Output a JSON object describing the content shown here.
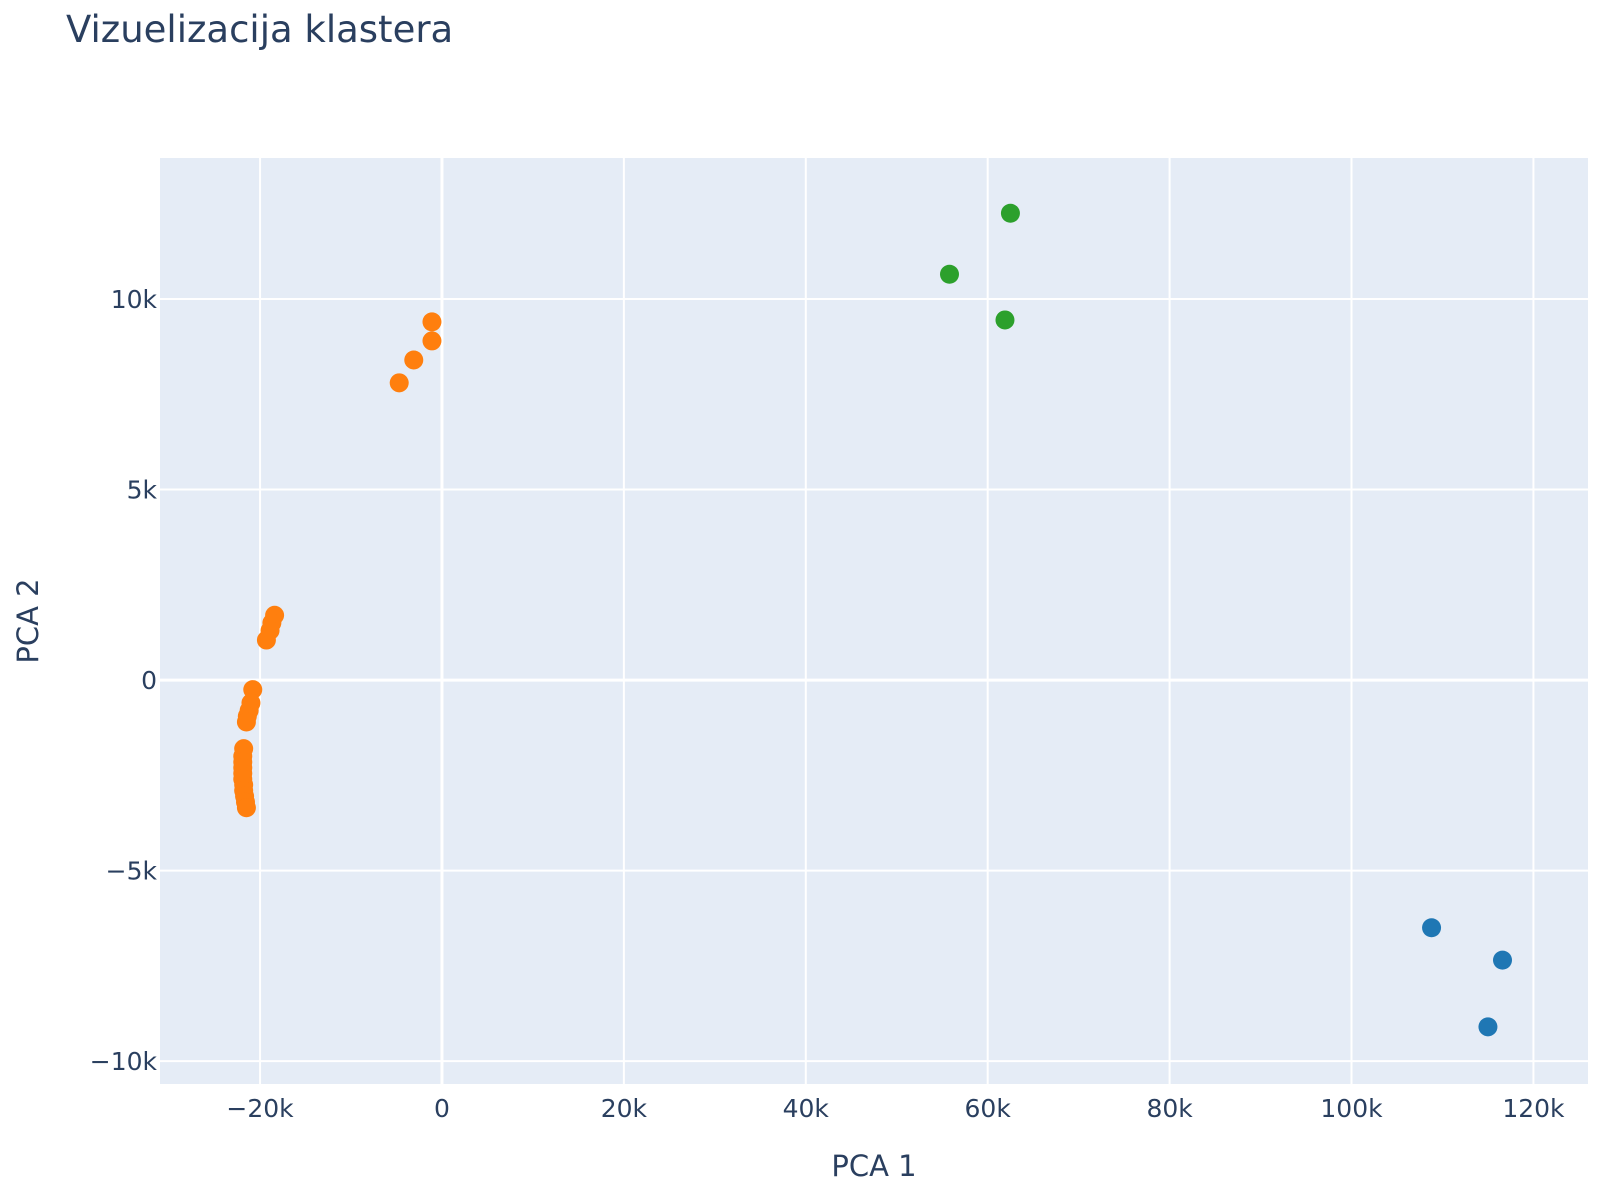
{
  "chart_data": {
    "type": "scatter",
    "title": "Vizuelizacija klastera",
    "xlabel": "PCA 1",
    "ylabel": "PCA 2",
    "xlim": [
      -31000,
      126000
    ],
    "ylim": [
      -10600,
      13700
    ],
    "x_ticks": [
      {
        "value": -20000,
        "label": "−20k"
      },
      {
        "value": 0,
        "label": "0"
      },
      {
        "value": 20000,
        "label": "20k"
      },
      {
        "value": 40000,
        "label": "40k"
      },
      {
        "value": 60000,
        "label": "60k"
      },
      {
        "value": 80000,
        "label": "80k"
      },
      {
        "value": 100000,
        "label": "100k"
      },
      {
        "value": 120000,
        "label": "120k"
      }
    ],
    "y_ticks": [
      {
        "value": -10000,
        "label": "−10k"
      },
      {
        "value": -5000,
        "label": "−5k"
      },
      {
        "value": 0,
        "label": "0"
      },
      {
        "value": 5000,
        "label": "5k"
      },
      {
        "value": 10000,
        "label": "10k"
      }
    ],
    "grid": true,
    "legend": "none",
    "series": [
      {
        "color": "#1f77b4",
        "points": [
          [
            108800,
            -6500
          ],
          [
            116600,
            -7350
          ],
          [
            115000,
            -9100
          ]
        ]
      },
      {
        "color": "#ff7f0e",
        "points": [
          [
            -1100,
            9400
          ],
          [
            -1100,
            8900
          ],
          [
            -3100,
            8400
          ],
          [
            -4700,
            7800
          ],
          [
            -18400,
            1700
          ],
          [
            -18700,
            1500
          ],
          [
            -18900,
            1300
          ],
          [
            -19300,
            1050
          ],
          [
            -20800,
            -250
          ],
          [
            -21000,
            -600
          ],
          [
            -21200,
            -800
          ],
          [
            -21400,
            -950
          ],
          [
            -21500,
            -1100
          ],
          [
            -21800,
            -1800
          ],
          [
            -21900,
            -2000
          ],
          [
            -21900,
            -2150
          ],
          [
            -21900,
            -2300
          ],
          [
            -21900,
            -2450
          ],
          [
            -21900,
            -2600
          ],
          [
            -21800,
            -2750
          ],
          [
            -21800,
            -2900
          ],
          [
            -21700,
            -3050
          ],
          [
            -21600,
            -3200
          ],
          [
            -21500,
            -3350
          ]
        ]
      },
      {
        "color": "#2ca02c",
        "points": [
          [
            62500,
            12250
          ],
          [
            55800,
            10650
          ],
          [
            61900,
            9450
          ]
        ]
      }
    ],
    "colors": {
      "plot_bg": "#e5ecf6",
      "grid": "#ffffff",
      "text": "#2a3f5f"
    }
  }
}
